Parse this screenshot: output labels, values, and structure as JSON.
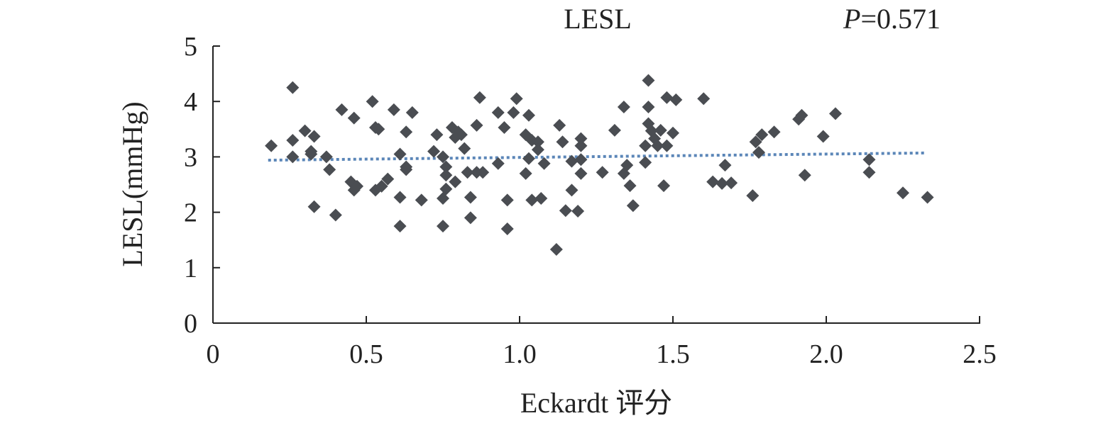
{
  "chart_data": {
    "type": "scatter",
    "title": "LESL",
    "annotation": {
      "p_label": "P",
      "p_value": "=0.571"
    },
    "xlabel": "Eckardt 评分",
    "ylabel": "LESL(mmHg)",
    "xlim": [
      0,
      2.5
    ],
    "ylim": [
      0,
      5
    ],
    "xticks": [
      "0",
      "0.5",
      "1.0",
      "1.5",
      "2.0",
      "2.5"
    ],
    "xtick_values": [
      0,
      0.5,
      1.0,
      1.5,
      2.0,
      2.5
    ],
    "yticks": [
      "0",
      "1",
      "2",
      "3",
      "4",
      "5"
    ],
    "ytick_values": [
      0,
      1,
      2,
      3,
      4,
      5
    ],
    "grid": false,
    "marker_color": "#4a4d52",
    "trend_color": "#5b86b8",
    "trendline": {
      "x": [
        0.18,
        2.32
      ],
      "y": [
        2.94,
        3.07
      ]
    },
    "points": [
      [
        0.19,
        3.2
      ],
      [
        0.26,
        4.25
      ],
      [
        0.26,
        3.3
      ],
      [
        0.26,
        3.0
      ],
      [
        0.3,
        3.47
      ],
      [
        0.33,
        3.37
      ],
      [
        0.32,
        3.1
      ],
      [
        0.32,
        3.05
      ],
      [
        0.37,
        3.0
      ],
      [
        0.38,
        2.77
      ],
      [
        0.33,
        2.1
      ],
      [
        0.4,
        1.95
      ],
      [
        0.42,
        3.85
      ],
      [
        0.46,
        3.7
      ],
      [
        0.45,
        2.55
      ],
      [
        0.47,
        2.47
      ],
      [
        0.46,
        2.4
      ],
      [
        0.52,
        4.0
      ],
      [
        0.53,
        3.53
      ],
      [
        0.54,
        3.5
      ],
      [
        0.53,
        2.4
      ],
      [
        0.55,
        2.47
      ],
      [
        0.57,
        2.6
      ],
      [
        0.59,
        3.85
      ],
      [
        0.65,
        3.8
      ],
      [
        0.63,
        3.45
      ],
      [
        0.61,
        3.05
      ],
      [
        0.63,
        2.82
      ],
      [
        0.63,
        2.77
      ],
      [
        0.61,
        2.27
      ],
      [
        0.61,
        1.75
      ],
      [
        0.68,
        2.22
      ],
      [
        0.73,
        3.4
      ],
      [
        0.72,
        3.1
      ],
      [
        0.75,
        3.0
      ],
      [
        0.76,
        2.82
      ],
      [
        0.78,
        3.53
      ],
      [
        0.8,
        3.45
      ],
      [
        0.79,
        3.35
      ],
      [
        0.81,
        3.4
      ],
      [
        0.82,
        3.15
      ],
      [
        0.76,
        2.67
      ],
      [
        0.76,
        2.42
      ],
      [
        0.79,
        2.55
      ],
      [
        0.75,
        2.25
      ],
      [
        0.75,
        1.75
      ],
      [
        0.83,
        2.72
      ],
      [
        0.86,
        2.72
      ],
      [
        0.84,
        1.9
      ],
      [
        0.84,
        2.27
      ],
      [
        0.86,
        3.57
      ],
      [
        0.87,
        4.07
      ],
      [
        0.88,
        2.72
      ],
      [
        0.93,
        2.88
      ],
      [
        0.95,
        3.53
      ],
      [
        0.93,
        3.8
      ],
      [
        0.99,
        4.05
      ],
      [
        0.98,
        3.8
      ],
      [
        1.03,
        3.75
      ],
      [
        1.02,
        3.4
      ],
      [
        0.96,
        2.22
      ],
      [
        0.96,
        1.7
      ],
      [
        1.02,
        2.7
      ],
      [
        1.03,
        2.97
      ],
      [
        1.04,
        2.22
      ],
      [
        1.07,
        2.25
      ],
      [
        1.04,
        3.3
      ],
      [
        1.06,
        3.27
      ],
      [
        1.08,
        2.88
      ],
      [
        1.06,
        3.13
      ],
      [
        1.12,
        1.33
      ],
      [
        1.14,
        3.27
      ],
      [
        1.13,
        3.57
      ],
      [
        1.17,
        2.92
      ],
      [
        1.15,
        2.03
      ],
      [
        1.17,
        2.4
      ],
      [
        1.19,
        2.02
      ],
      [
        1.2,
        3.2
      ],
      [
        1.2,
        3.33
      ],
      [
        1.2,
        2.95
      ],
      [
        1.2,
        2.7
      ],
      [
        1.27,
        2.72
      ],
      [
        1.31,
        3.48
      ],
      [
        1.34,
        3.9
      ],
      [
        1.34,
        2.7
      ],
      [
        1.35,
        2.85
      ],
      [
        1.36,
        2.48
      ],
      [
        1.37,
        2.12
      ],
      [
        1.42,
        4.38
      ],
      [
        1.42,
        3.9
      ],
      [
        1.41,
        3.2
      ],
      [
        1.41,
        2.9
      ],
      [
        1.42,
        3.6
      ],
      [
        1.43,
        3.47
      ],
      [
        1.44,
        3.33
      ],
      [
        1.45,
        3.2
      ],
      [
        1.46,
        3.48
      ],
      [
        1.48,
        4.07
      ],
      [
        1.51,
        4.03
      ],
      [
        1.5,
        3.43
      ],
      [
        1.48,
        3.2
      ],
      [
        1.47,
        2.48
      ],
      [
        1.6,
        4.05
      ],
      [
        1.63,
        2.55
      ],
      [
        1.67,
        2.85
      ],
      [
        1.69,
        2.53
      ],
      [
        1.66,
        2.52
      ],
      [
        1.76,
        2.3
      ],
      [
        1.77,
        3.27
      ],
      [
        1.79,
        3.4
      ],
      [
        1.83,
        3.45
      ],
      [
        1.91,
        3.68
      ],
      [
        1.92,
        3.75
      ],
      [
        1.93,
        2.67
      ],
      [
        1.99,
        3.37
      ],
      [
        2.03,
        3.78
      ],
      [
        2.14,
        2.95
      ],
      [
        2.14,
        2.72
      ],
      [
        2.25,
        2.35
      ],
      [
        2.33,
        2.27
      ],
      [
        1.78,
        3.08
      ]
    ]
  }
}
